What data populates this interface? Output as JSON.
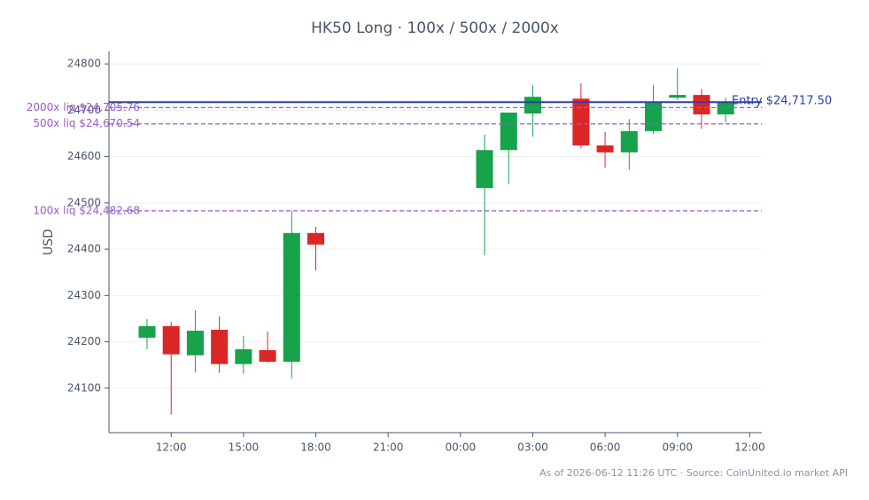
{
  "chart_data": {
    "type": "candlestick",
    "title": "HK50 Long · 100x / 500x / 2000x",
    "y_label": "USD",
    "footnote": "As of 2026-06-12 11:26 UTC · Source: CoinUnited.io market API",
    "x": [
      11,
      12,
      13,
      14,
      15,
      16,
      17,
      18,
      25,
      26,
      27,
      29,
      30,
      31,
      32,
      33,
      34,
      35
    ],
    "open": [
      24209,
      24234,
      24171,
      24226,
      24152,
      24182,
      24157,
      24435,
      24532,
      24614,
      24693,
      24725,
      24624,
      24609,
      24655,
      24727,
      24733,
      24691
    ],
    "high": [
      24249,
      24243,
      24268,
      24255,
      24213,
      24222,
      24483,
      24448,
      24647,
      24695,
      24754,
      24758,
      24653,
      24681,
      24754,
      24790,
      24746,
      24727
    ],
    "low": [
      24184,
      24043,
      24134,
      24133,
      24131,
      24155,
      24121,
      24354,
      24387,
      24540,
      24643,
      24618,
      24576,
      24571,
      24649,
      24722,
      24660,
      24674
    ],
    "close": [
      24234,
      24173,
      24224,
      24152,
      24184,
      24157,
      24435,
      24410,
      24614,
      24695,
      24729,
      24624,
      24609,
      24655,
      24718,
      24733,
      24691,
      24718
    ],
    "up_color": "#16a34a",
    "down_color": "#dc2626",
    "xlim": [
      9.42,
      36.5
    ],
    "xticks": [
      {
        "value": 12,
        "label": "12:00"
      },
      {
        "value": 15,
        "label": "15:00"
      },
      {
        "value": 18,
        "label": "18:00"
      },
      {
        "value": 21,
        "label": "21:00"
      },
      {
        "value": 24,
        "label": "00:00"
      },
      {
        "value": 27,
        "label": "03:00"
      },
      {
        "value": 30,
        "label": "06:00"
      },
      {
        "value": 33,
        "label": "09:00"
      },
      {
        "value": 36,
        "label": "12:00"
      }
    ],
    "ylim": [
      24004,
      24827
    ],
    "yticks": [
      24100,
      24200,
      24300,
      24400,
      24500,
      24600,
      24700,
      24800
    ],
    "grid": true,
    "hlines": [
      {
        "value": 24717.5,
        "label": "Entry $24,717.50",
        "color": "#2f3fa8",
        "dashed": false,
        "label_side": "right"
      },
      {
        "value": 24705.76,
        "label": "2000x liq $24,705.76",
        "color": "#9b59d0",
        "dashed": true,
        "label_side": "left"
      },
      {
        "value": 24670.54,
        "label": "500x liq $24,670.54",
        "color": "#9b59d0",
        "dashed": true,
        "label_side": "left"
      },
      {
        "value": 24482.68,
        "label": "100x liq $24,482.68",
        "color": "#9b59d0",
        "dashed": true,
        "label_side": "left"
      }
    ]
  }
}
